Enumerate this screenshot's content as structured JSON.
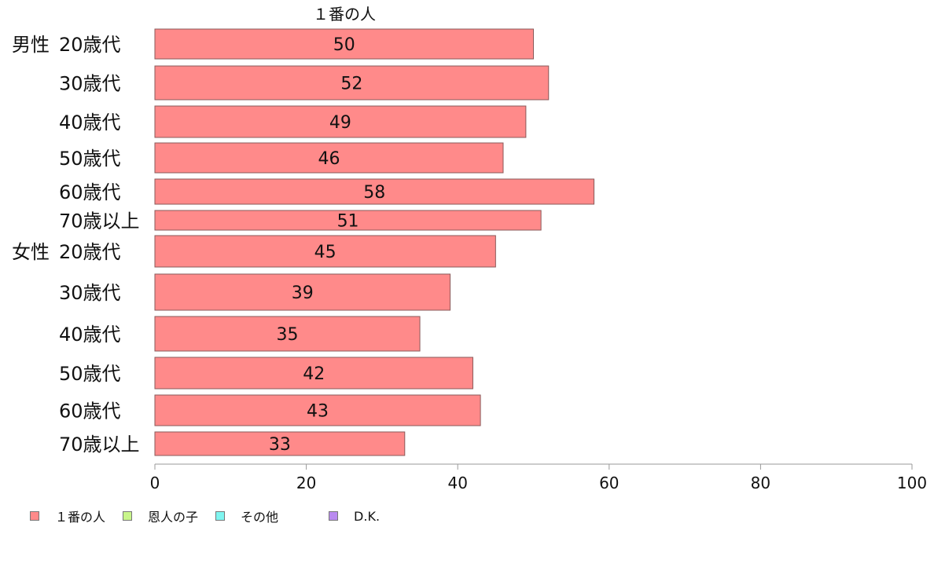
{
  "chart_data": {
    "type": "bar",
    "orientation": "horizontal",
    "title": "１番の人",
    "groups": [
      {
        "name": "男性",
        "categories": [
          "20歳代",
          "30歳代",
          "40歳代",
          "50歳代",
          "60歳代",
          "70歳以上"
        ]
      },
      {
        "name": "女性",
        "categories": [
          "20歳代",
          "30歳代",
          "40歳代",
          "50歳代",
          "60歳代",
          "70歳以上"
        ]
      }
    ],
    "series": [
      {
        "name": "１番の人",
        "color": "#ff8a8a",
        "values": [
          50,
          52,
          49,
          46,
          58,
          51,
          45,
          39,
          35,
          42,
          43,
          33
        ]
      }
    ],
    "xlim": [
      0,
      100
    ],
    "xticks": [
      0,
      20,
      40,
      60,
      80,
      100
    ],
    "legend": {
      "placement": "bottom-left",
      "items": [
        {
          "label": "１番の人",
          "color": "#ff8a8a"
        },
        {
          "label": "恩人の子",
          "color": "#c8f58a"
        },
        {
          "label": "その他",
          "color": "#7ff5f0"
        },
        {
          "label": "D.K.",
          "color": "#b98af0"
        }
      ]
    },
    "grid": false
  }
}
